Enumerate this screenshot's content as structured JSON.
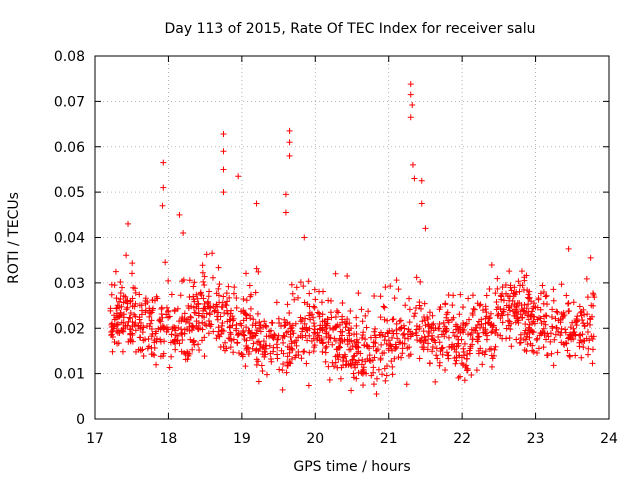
{
  "chart_data": {
    "type": "scatter",
    "title": "Day 113 of 2015, Rate Of TEC Index for receiver salu",
    "xlabel": "GPS time / hours",
    "ylabel": "ROTI / TECUs",
    "xlim": [
      17,
      24
    ],
    "ylim": [
      0,
      0.08
    ],
    "x_ticks": [
      17,
      18,
      19,
      20,
      21,
      22,
      23,
      24
    ],
    "x_tick_labels": [
      "17",
      "18",
      "19",
      "20",
      "21",
      "22",
      "23",
      "24"
    ],
    "y_ticks": [
      0,
      0.01,
      0.02,
      0.03,
      0.04,
      0.05,
      0.06,
      0.07,
      0.08
    ],
    "y_tick_labels": [
      "0",
      "0.01",
      "0.02",
      "0.03",
      "0.04",
      "0.05",
      "0.06",
      "0.07",
      "0.08"
    ],
    "grid": true,
    "marker": "+",
    "color": "#ff0000",
    "x_range_of_points": [
      17.2,
      23.8
    ],
    "typical_value_range": [
      0.006,
      0.035
    ],
    "series": [
      {
        "name": "ROTI",
        "notable_points": [
          {
            "x": 17.45,
            "y": 0.043
          },
          {
            "x": 17.93,
            "y": 0.0565
          },
          {
            "x": 17.93,
            "y": 0.051
          },
          {
            "x": 17.92,
            "y": 0.047
          },
          {
            "x": 18.15,
            "y": 0.045
          },
          {
            "x": 18.2,
            "y": 0.041
          },
          {
            "x": 18.75,
            "y": 0.0628
          },
          {
            "x": 18.75,
            "y": 0.059
          },
          {
            "x": 18.75,
            "y": 0.055
          },
          {
            "x": 18.75,
            "y": 0.05
          },
          {
            "x": 18.95,
            "y": 0.0535
          },
          {
            "x": 19.2,
            "y": 0.0475
          },
          {
            "x": 19.65,
            "y": 0.0635
          },
          {
            "x": 19.65,
            "y": 0.061
          },
          {
            "x": 19.65,
            "y": 0.058
          },
          {
            "x": 19.6,
            "y": 0.0495
          },
          {
            "x": 19.6,
            "y": 0.0455
          },
          {
            "x": 19.85,
            "y": 0.04
          },
          {
            "x": 21.3,
            "y": 0.0738
          },
          {
            "x": 21.3,
            "y": 0.0715
          },
          {
            "x": 21.32,
            "y": 0.0692
          },
          {
            "x": 21.3,
            "y": 0.0665
          },
          {
            "x": 21.33,
            "y": 0.056
          },
          {
            "x": 21.35,
            "y": 0.053
          },
          {
            "x": 21.45,
            "y": 0.0525
          },
          {
            "x": 21.45,
            "y": 0.0475
          },
          {
            "x": 21.5,
            "y": 0.042
          },
          {
            "x": 23.45,
            "y": 0.0375
          },
          {
            "x": 23.75,
            "y": 0.0355
          }
        ]
      }
    ]
  }
}
